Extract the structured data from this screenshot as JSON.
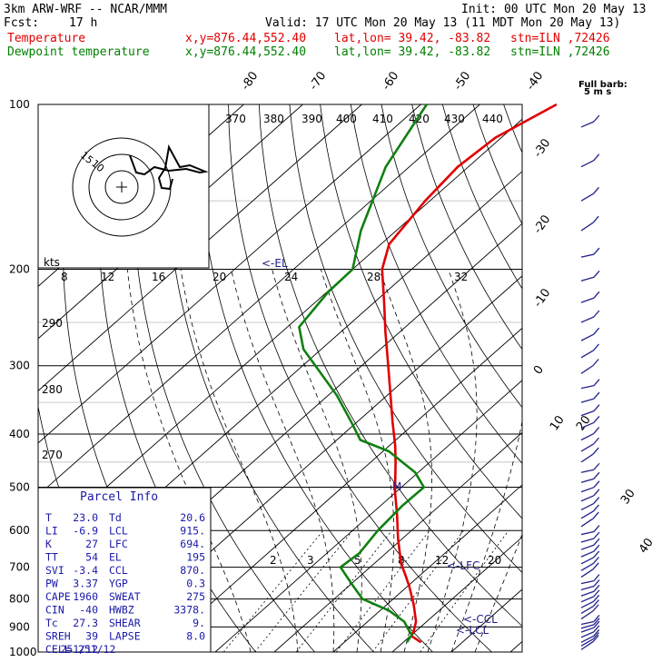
{
  "header": {
    "model": "3km ARW-WRF -- NCAR/MMM",
    "init": "Init: 00 UTC Mon 20 May 13",
    "fcst_label": "Fcst:",
    "fcst_value": "17 h",
    "valid": "Valid: 17 UTC Mon 20 May 13 (11 MDT Mon 20 May 13)",
    "temp_line": {
      "name": "Temperature",
      "xy": "x,y=876.44,552.40",
      "latlon": "lat,lon= 39.42, -83.82",
      "stn": "stn=ILN ,72426"
    },
    "dew_line": {
      "name": "Dewpoint temperature",
      "xy": "x,y=876.44,552.40",
      "latlon": "lat,lon= 39.42, -83.82",
      "stn": "stn=ILN ,72426"
    }
  },
  "colors": {
    "temperature": "#e00000",
    "dewpoint": "#108010",
    "wind": "#20208a",
    "parcel_text": "#1a1aa8",
    "grid": "#000000"
  },
  "barb_legend": {
    "line1": "Full barb:",
    "line2": "5 m s"
  },
  "chart_data": {
    "type": "line",
    "subtype": "skew-T log-P",
    "pressure_ticks": [
      100,
      200,
      300,
      400,
      500,
      600,
      700,
      800,
      900,
      1000
    ],
    "isotherm_labels": [
      "-80",
      "-70",
      "-60",
      "-50",
      "-40",
      "-30",
      "-20",
      "-10",
      "0",
      "10",
      "20",
      "30",
      "40"
    ],
    "theta_labels": [
      "370",
      "380",
      "390",
      "400",
      "410",
      "420",
      "430",
      "440",
      "290",
      "280",
      "270"
    ],
    "mixing_ratio_labels": [
      "2",
      "3",
      "5",
      "8",
      "12",
      "20"
    ],
    "hodo_speed_labels": [
      "kts",
      "8",
      "12",
      "16",
      "20",
      "24",
      "28",
      "32"
    ],
    "hodo_ring_labels": [
      "15",
      "10"
    ],
    "level_markers": [
      "<-EL",
      "<-LFC",
      "<-CCL",
      "<-LCL",
      "M"
    ],
    "series": [
      {
        "name": "Temperature",
        "p": [
          960,
          935,
          915,
          880,
          820,
          760,
          720,
          690,
          620,
          560,
          510,
          450,
          420,
          380,
          300,
          260,
          230,
          200,
          180,
          150,
          130,
          115,
          100
        ],
        "t": [
          23.0,
          20.2,
          19.6,
          18.2,
          14.6,
          10.4,
          7.2,
          4.6,
          -0.8,
          -5.6,
          -10.2,
          -15.8,
          -19.0,
          -24.0,
          -35.5,
          -42.5,
          -48.3,
          -55.0,
          -58.6,
          -60.8,
          -61.8,
          -61.0,
          -57.0
        ]
      },
      {
        "name": "Dewpoint temperature",
        "p": [
          960,
          930,
          915,
          880,
          840,
          800,
          750,
          700,
          660,
          600,
          540,
          500,
          470,
          430,
          410,
          380,
          340,
          280,
          255,
          220,
          200,
          170,
          130,
          100
        ],
        "t": [
          20.6,
          20.0,
          18.8,
          16.2,
          11.5,
          4.8,
          0.0,
          -5.0,
          -4.5,
          -5.7,
          -6.3,
          -6.2,
          -10.5,
          -19.0,
          -26.0,
          -31.0,
          -38.5,
          -53.0,
          -58.0,
          -59.8,
          -60.0,
          -66.0,
          -74.0,
          -79.0
        ]
      }
    ],
    "wind_barb_pressures": [
      990,
      975,
      960,
      940,
      920,
      905,
      890,
      870,
      850,
      830,
      810,
      790,
      770,
      750,
      730,
      710,
      690,
      670,
      650,
      630,
      610,
      590,
      570,
      550,
      530,
      510,
      490,
      470,
      450,
      430,
      410,
      390,
      370,
      350,
      330,
      310,
      290,
      270,
      250,
      230,
      210,
      190,
      170,
      150,
      130,
      110
    ],
    "ylim": [
      1000,
      100
    ],
    "tlim_surface": [
      -40,
      42
    ]
  },
  "parcel_info": {
    "title": "Parcel Info",
    "rows": [
      {
        "k1": "T",
        "v1": "23.0",
        "k2": "Td",
        "v2": "20.6"
      },
      {
        "k1": "LI",
        "v1": "-6.9",
        "k2": "LCL",
        "v2": "915."
      },
      {
        "k1": "K",
        "v1": "27",
        "k2": "LFC",
        "v2": "694."
      },
      {
        "k1": "TT",
        "v1": "54",
        "k2": "EL",
        "v2": "195"
      },
      {
        "k1": "SVI",
        "v1": "-3.4",
        "k2": "CCL",
        "v2": "870."
      },
      {
        "k1": "PW",
        "v1": "3.37",
        "k2": "YGP",
        "v2": "0.3"
      },
      {
        "k1": "CAPE",
        "v1": "1960",
        "k2": "SWEAT",
        "v2": "275"
      },
      {
        "k1": "CIN",
        "v1": "-40",
        "k2": "HWBZ",
        "v2": "3378."
      },
      {
        "k1": "Tc",
        "v1": "27.3",
        "k2": "SHEAR",
        "v2": "9."
      },
      {
        "k1": "SREH",
        "v1": "39",
        "k2": "LAPSE",
        "v2": "8.0"
      },
      {
        "k1": "CELL",
        "v1": "251/12",
        "k2": "",
        "v2": ""
      }
    ]
  }
}
